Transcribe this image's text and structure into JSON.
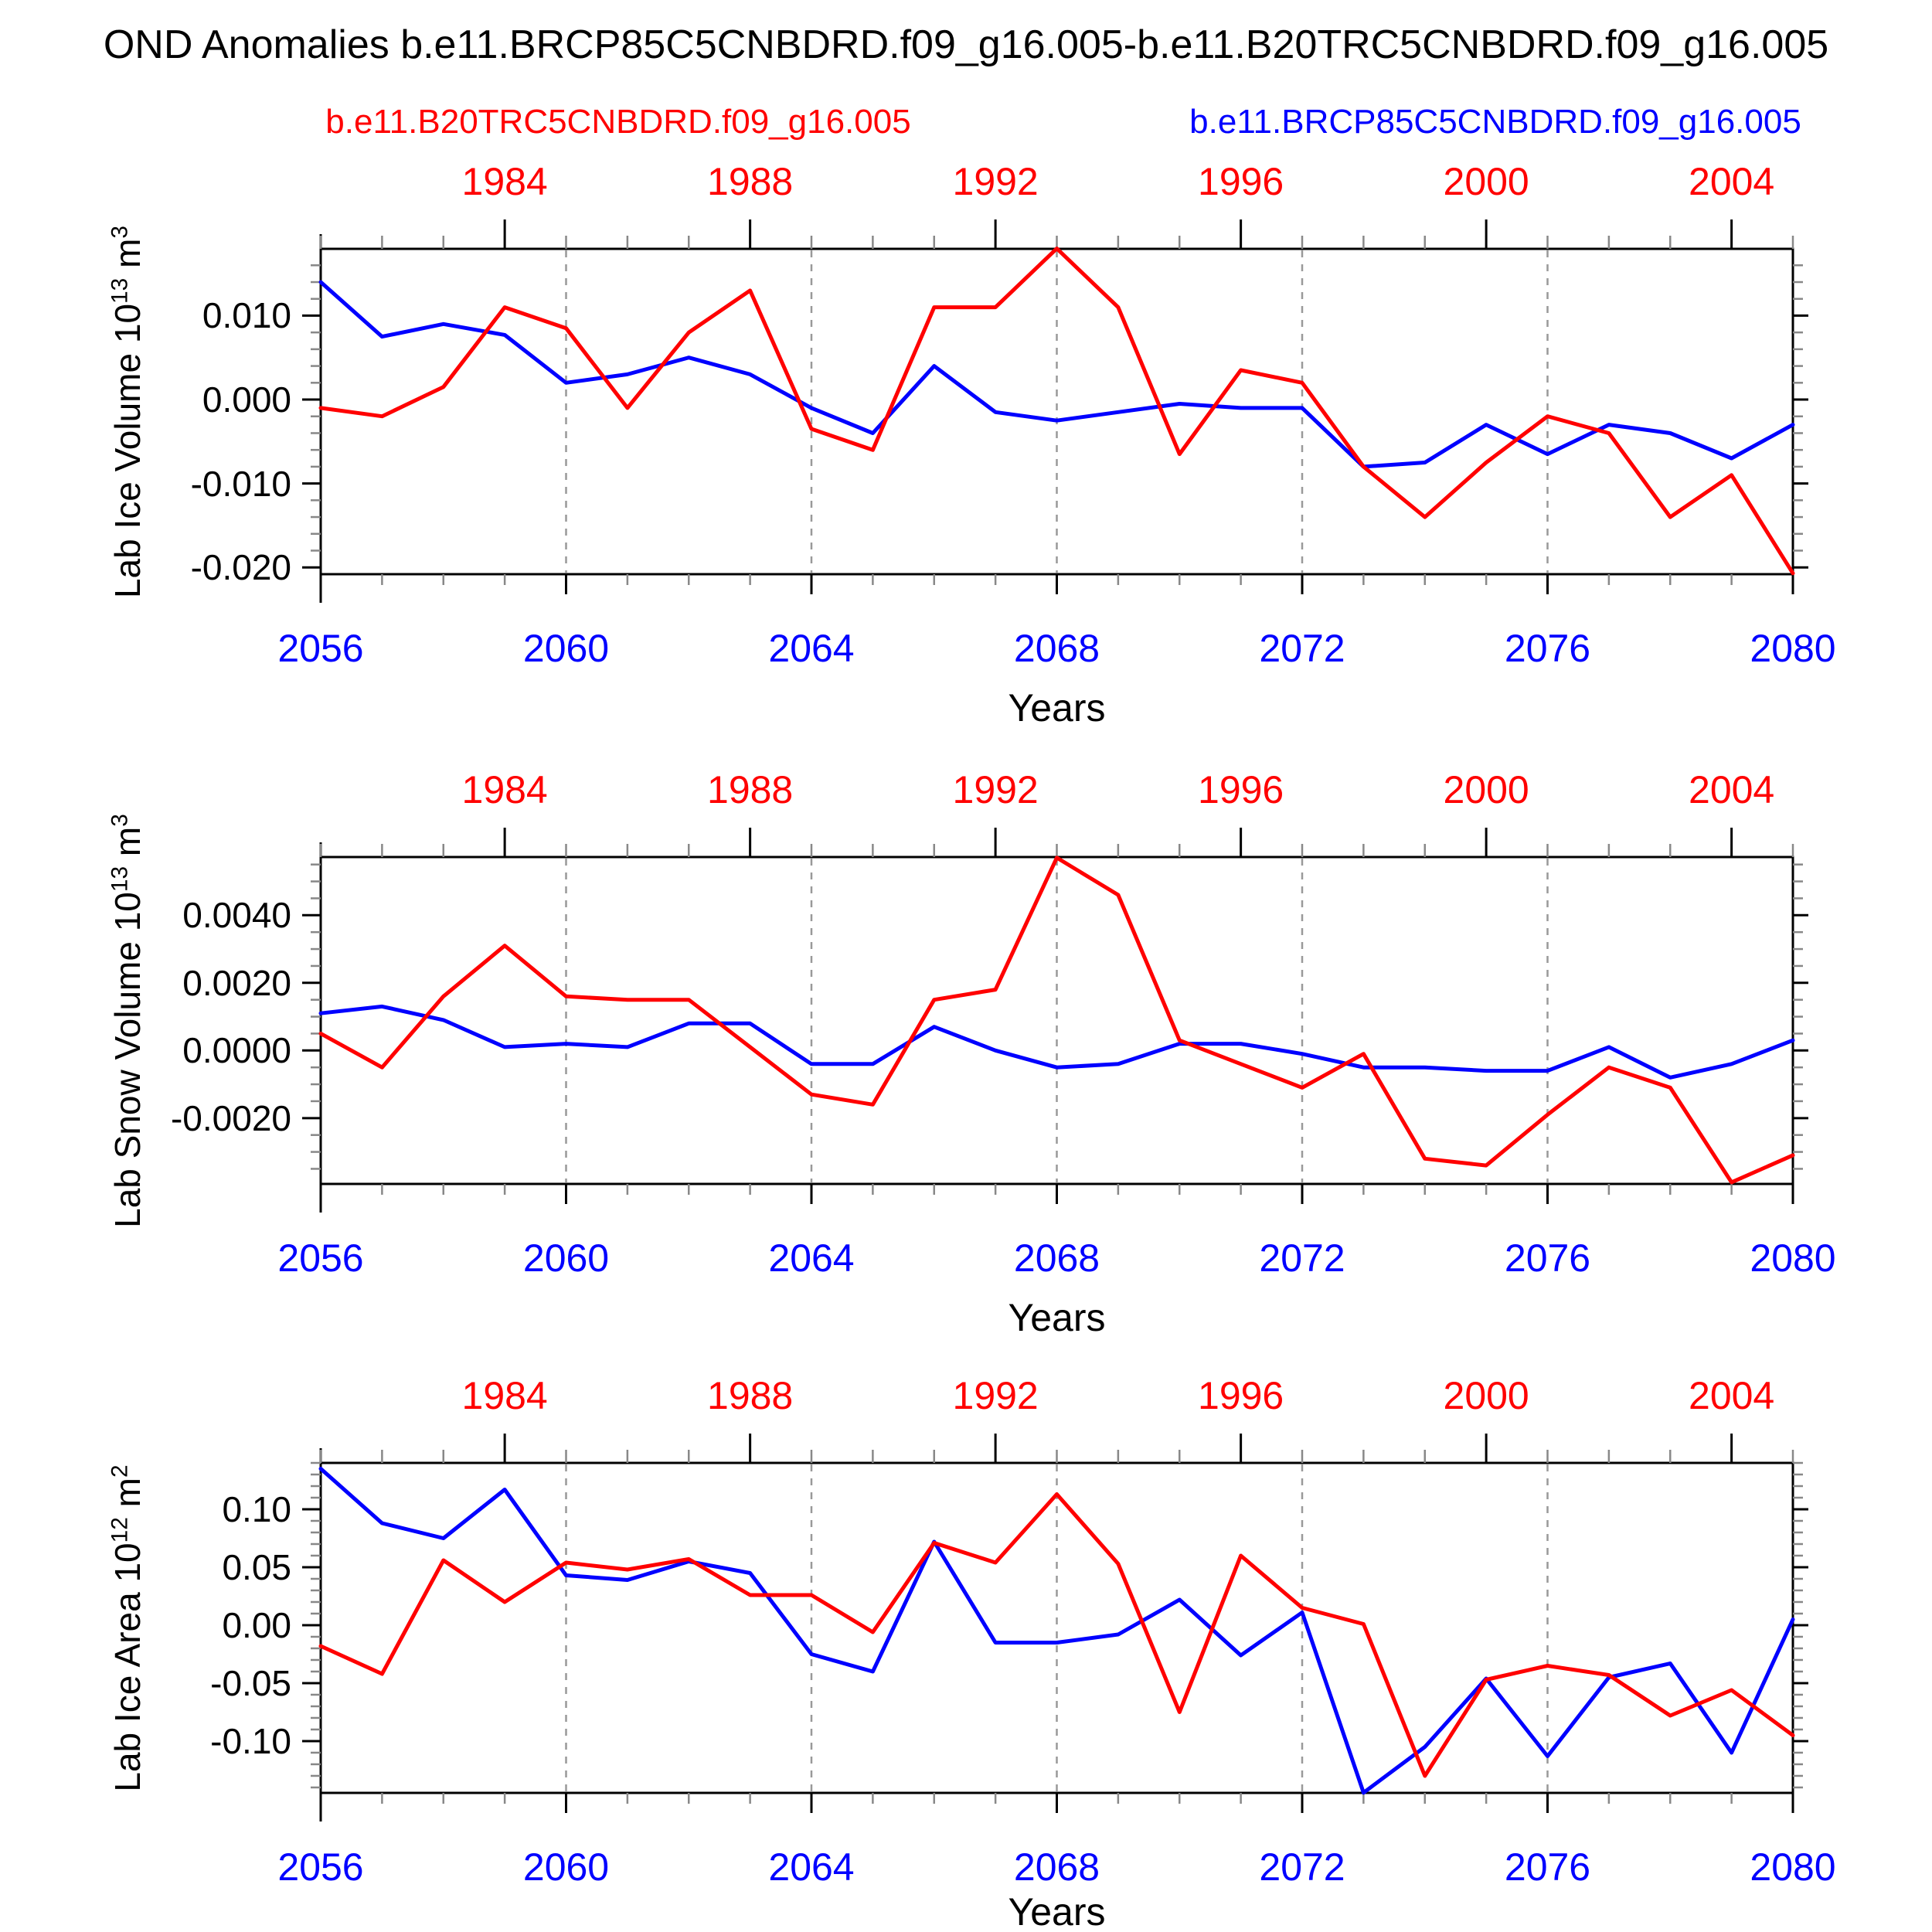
{
  "title": "OND Anomalies b.e11.BRCP85C5CNBDRD.f09_g16.005-b.e11.B20TRC5CNBDRD.f09_g16.005",
  "legend": {
    "red_label": "b.e11.B20TRC5CNBDRD.f09_g16.005",
    "blue_label": "b.e11.BRCP85C5CNBDRD.f09_g16.005"
  },
  "colors": {
    "red": "#ff0000",
    "blue": "#0000ff",
    "axis": "#000000",
    "grid": "#999999",
    "minor_tick": "#888888"
  },
  "x_axis": {
    "label": "Years",
    "years": [
      2056,
      2057,
      2058,
      2059,
      2060,
      2061,
      2062,
      2063,
      2064,
      2065,
      2066,
      2067,
      2068,
      2069,
      2070,
      2071,
      2072,
      2073,
      2074,
      2075,
      2076,
      2077,
      2078,
      2079,
      2080
    ],
    "bottom_major_years": [
      2056,
      2060,
      2064,
      2068,
      2072,
      2076,
      2080
    ],
    "bottom_major_labels": [
      "2056",
      "2060",
      "2064",
      "2068",
      "2072",
      "2076",
      "2080"
    ],
    "top_major_at_years": [
      2059,
      2063,
      2067,
      2071,
      2075,
      2079
    ],
    "top_major_labels": [
      "1984",
      "1988",
      "1992",
      "1996",
      "2000",
      "2004"
    ],
    "top_axis_year_range": [
      1981,
      2005
    ],
    "grid_years": [
      2060,
      2064,
      2068,
      2072,
      2076
    ]
  },
  "chart_data": [
    {
      "type": "line",
      "title": "Lab Ice Volume 10^13 m^3",
      "xlabel": "Years",
      "ylabel": "Lab Ice Volume 10^13 m^3",
      "ylabel_pre": "Lab Ice Volume 10",
      "ylabel_sup": "13",
      "ylabel_mid": " m",
      "ylabel_sup2": "3",
      "x": [
        2056,
        2057,
        2058,
        2059,
        2060,
        2061,
        2062,
        2063,
        2064,
        2065,
        2066,
        2067,
        2068,
        2069,
        2070,
        2071,
        2072,
        2073,
        2074,
        2075,
        2076,
        2077,
        2078,
        2079,
        2080
      ],
      "ylim": [
        -0.02081,
        0.01796
      ],
      "yticks": {
        "major_values": [
          0.01,
          0.0,
          -0.01,
          -0.02
        ],
        "major_labels": [
          "0.010",
          "0.000",
          "-0.010",
          "-0.020"
        ],
        "minor_step": 0.002
      },
      "legend_position": "top",
      "grid": "vertical-dashed",
      "series": [
        {
          "name": "b.e11.BRCP85C5CNBDRD.f09_g16.005",
          "color": "#0000ff",
          "values": [
            0.014,
            0.0075,
            0.009,
            0.0077,
            0.002,
            0.003,
            0.005,
            0.003,
            -0.001,
            -0.004,
            0.004,
            -0.0015,
            -0.0025,
            -0.0015,
            -0.0005,
            -0.001,
            -0.001,
            -0.008,
            -0.0075,
            -0.003,
            -0.0065,
            -0.003,
            -0.004,
            -0.007,
            -0.003
          ]
        },
        {
          "name": "b.e11.B20TRC5CNBDRD.f09_g16.005",
          "color": "#ff0000",
          "values": [
            -0.001,
            -0.002,
            0.0015,
            0.011,
            0.0085,
            -0.001,
            0.008,
            0.013,
            -0.0035,
            -0.006,
            0.011,
            0.011,
            0.018,
            0.011,
            -0.0065,
            0.0035,
            0.002,
            -0.008,
            -0.014,
            -0.0075,
            -0.002,
            -0.004,
            -0.014,
            -0.009,
            -0.0207
          ]
        }
      ]
    },
    {
      "type": "line",
      "title": "Lab Snow Volume 10^13 m^3",
      "xlabel": "Years",
      "ylabel": "Lab Snow Volume 10^13 m^3",
      "ylabel_pre": "Lab Snow Volume 10",
      "ylabel_sup": "13",
      "ylabel_mid": " m",
      "ylabel_sup2": "3",
      "x": [
        2056,
        2057,
        2058,
        2059,
        2060,
        2061,
        2062,
        2063,
        2064,
        2065,
        2066,
        2067,
        2068,
        2069,
        2070,
        2071,
        2072,
        2073,
        2074,
        2075,
        2076,
        2077,
        2078,
        2079,
        2080
      ],
      "ylim": [
        -0.003947,
        0.005721
      ],
      "yticks": {
        "major_values": [
          0.004,
          0.002,
          0.0,
          -0.002
        ],
        "major_labels": [
          "0.0040",
          "0.0020",
          "0.0000",
          "-0.0020"
        ],
        "minor_step": 0.0005
      },
      "legend_position": "none",
      "grid": "vertical-dashed",
      "series": [
        {
          "name": "b.e11.BRCP85C5CNBDRD.f09_g16.005",
          "color": "#0000ff",
          "values": [
            0.0011,
            0.0013,
            0.0009,
            0.0001,
            0.0002,
            0.0001,
            0.0008,
            0.0008,
            -0.0004,
            -0.0004,
            0.0007,
            0.0,
            -0.0005,
            -0.0004,
            0.0002,
            0.0002,
            -0.0001,
            -0.0005,
            -0.0005,
            -0.0006,
            -0.0006,
            0.0001,
            -0.0008,
            -0.0004,
            0.0003
          ]
        },
        {
          "name": "b.e11.B20TRC5CNBDRD.f09_g16.005",
          "color": "#ff0000",
          "values": [
            0.0005,
            -0.0005,
            0.0016,
            0.0031,
            0.0016,
            0.0015,
            0.0015,
            0.0001,
            -0.0013,
            -0.0016,
            0.0015,
            0.0018,
            0.0057,
            0.0046,
            0.0003,
            -0.0004,
            -0.0011,
            -0.0001,
            -0.0032,
            -0.0034,
            -0.0019,
            -0.0005,
            -0.0011,
            -0.0039,
            -0.0031
          ]
        }
      ]
    },
    {
      "type": "line",
      "title": "Lab Ice Area 10^12 m^2",
      "xlabel": "Years",
      "ylabel": "Lab Ice Area 10^12 m^2",
      "ylabel_pre": "Lab Ice Area 10",
      "ylabel_sup": "12",
      "ylabel_mid": " m",
      "ylabel_sup2": "2",
      "x": [
        2056,
        2057,
        2058,
        2059,
        2060,
        2061,
        2062,
        2063,
        2064,
        2065,
        2066,
        2067,
        2068,
        2069,
        2070,
        2071,
        2072,
        2073,
        2074,
        2075,
        2076,
        2077,
        2078,
        2079,
        2080
      ],
      "ylim": [
        -0.1447,
        0.14
      ],
      "yticks": {
        "major_values": [
          0.1,
          0.05,
          0.0,
          -0.05,
          -0.1
        ],
        "major_labels": [
          "0.10",
          "0.05",
          "0.00",
          "-0.05",
          "-0.10"
        ],
        "minor_step": 0.01
      },
      "legend_position": "none",
      "grid": "vertical-dashed",
      "series": [
        {
          "name": "b.e11.BRCP85C5CNBDRD.f09_g16.005",
          "color": "#0000ff",
          "values": [
            0.135,
            0.088,
            0.075,
            0.117,
            0.043,
            0.039,
            0.055,
            0.045,
            -0.025,
            -0.04,
            0.072,
            -0.015,
            -0.015,
            -0.008,
            0.022,
            -0.026,
            0.011,
            -0.1445,
            -0.105,
            -0.046,
            -0.113,
            -0.045,
            -0.033,
            -0.11,
            0.005
          ]
        },
        {
          "name": "b.e11.B20TRC5CNBDRD.f09_g16.005",
          "color": "#ff0000",
          "values": [
            -0.018,
            -0.042,
            0.056,
            0.02,
            0.054,
            0.048,
            0.057,
            0.026,
            0.026,
            -0.006,
            0.071,
            0.054,
            0.113,
            0.053,
            -0.075,
            0.06,
            0.015,
            0.001,
            -0.13,
            -0.047,
            -0.035,
            -0.043,
            -0.078,
            -0.056,
            -0.095
          ]
        }
      ]
    }
  ]
}
